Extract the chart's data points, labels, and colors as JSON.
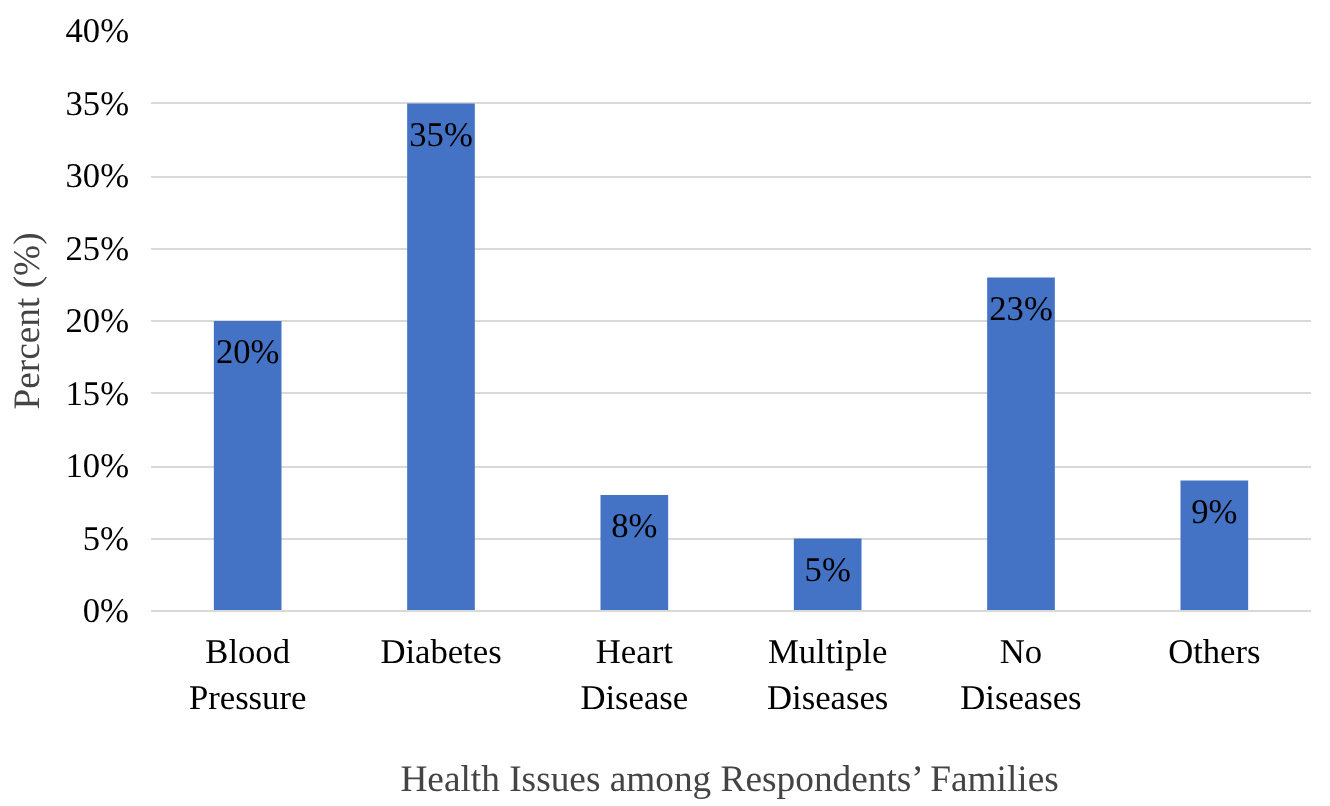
{
  "chart_data": {
    "type": "bar",
    "xlabel": "Health Issues among Respondents’ Families",
    "ylabel": "Percent (%)",
    "categories": [
      "Blood Pressure",
      "Diabetes",
      "Heart Disease",
      "Multiple Diseases",
      "No Diseases",
      "Others"
    ],
    "values": [
      20,
      35,
      8,
      5,
      23,
      9
    ],
    "value_labels": [
      "20%",
      "35%",
      "8%",
      "5%",
      "23%",
      "9%"
    ],
    "color": "#4472c4",
    "ylim": [
      0,
      40
    ],
    "yticks": [
      {
        "value": 0,
        "label": "0%"
      },
      {
        "value": 5,
        "label": "5%"
      },
      {
        "value": 10,
        "label": "10%"
      },
      {
        "value": 15,
        "label": "15%"
      },
      {
        "value": 20,
        "label": "20%"
      },
      {
        "value": 25,
        "label": "25%"
      },
      {
        "value": 30,
        "label": "30%"
      },
      {
        "value": 35,
        "label": "35%"
      },
      {
        "value": 40,
        "label": "40%"
      }
    ],
    "grid": "y"
  }
}
